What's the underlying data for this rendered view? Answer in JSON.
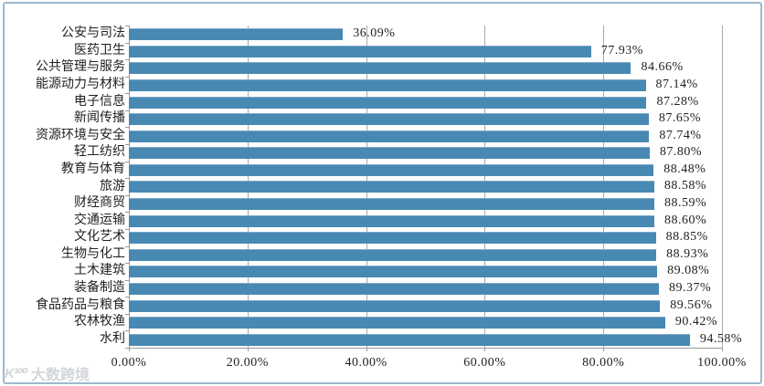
{
  "watermark": {
    "logo": "K¹⁰⁰",
    "text": "大数跨境"
  },
  "chart_data": {
    "type": "bar",
    "orientation": "horizontal",
    "title": "",
    "xlabel": "",
    "ylabel": "",
    "categories": [
      "公安与司法",
      "医药卫生",
      "公共管理与服务",
      "能源动力与材料",
      "电子信息",
      "新闻传播",
      "资源环境与安全",
      "轻工纺织",
      "教育与体育",
      "旅游",
      "财经商贸",
      "交通运输",
      "文化艺术",
      "生物与化工",
      "土木建筑",
      "装备制造",
      "食品药品与粮食",
      "农林牧渔",
      "水利"
    ],
    "values": [
      36.09,
      77.93,
      84.66,
      87.14,
      87.28,
      87.65,
      87.74,
      87.8,
      88.48,
      88.58,
      88.59,
      88.6,
      88.85,
      88.93,
      89.08,
      89.37,
      89.56,
      90.42,
      94.58
    ],
    "value_labels": [
      "36.09%",
      "77.93%",
      "84.66%",
      "87.14%",
      "87.28%",
      "87.65%",
      "87.74%",
      "87.80%",
      "88.48%",
      "88.58%",
      "88.59%",
      "88.60%",
      "88.85%",
      "88.93%",
      "89.08%",
      "89.37%",
      "89.56%",
      "90.42%",
      "94.58%"
    ],
    "xlim": [
      0,
      100
    ],
    "x_tick_values": [
      0,
      20,
      40,
      60,
      80,
      100
    ],
    "x_tick_labels": [
      "0.00%",
      "20.00%",
      "40.00%",
      "60.00%",
      "80.00%",
      "100.00%"
    ],
    "grid": true,
    "legend": "none",
    "bar_color": "#4889b3",
    "gridline_color": "#aaaaaa",
    "border_color": "#9db9ce",
    "text_color": "#1f1f1f",
    "watermark_color": "#d2d6da"
  }
}
